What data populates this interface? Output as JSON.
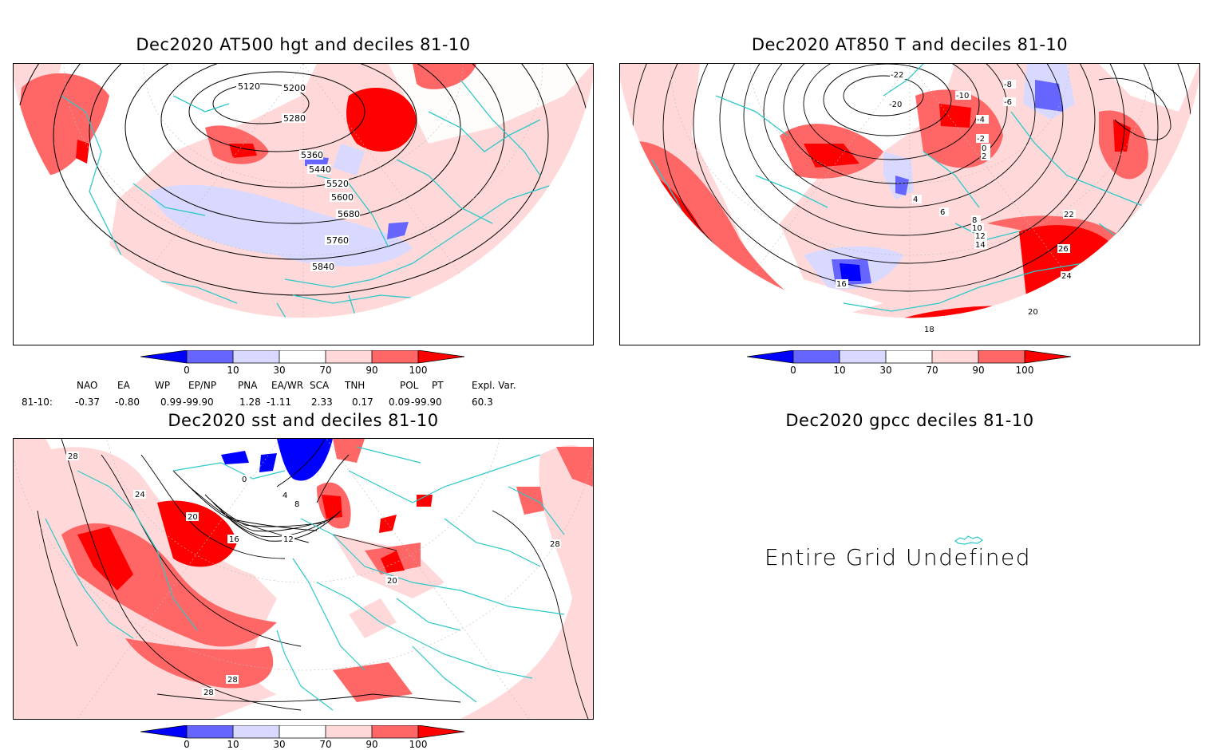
{
  "panels": {
    "hgt": {
      "title": "Dec2020 AT500 hgt and deciles 81-10",
      "contour_labels": [
        "5120",
        "5200",
        "5280",
        "5360",
        "5440",
        "5520",
        "5600",
        "5680",
        "5760",
        "5840"
      ]
    },
    "t850": {
      "title": "Dec2020 AT850 T and deciles 81-10",
      "contour_labels": [
        "-22",
        "-20",
        "-10",
        "-8",
        "-6",
        "-4",
        "-2",
        "0",
        "2",
        "4",
        "6",
        "8",
        "10",
        "12",
        "14",
        "16",
        "18",
        "20",
        "22",
        "24",
        "26"
      ]
    },
    "sst": {
      "title": "Dec2020 sst and deciles 81-10",
      "contour_labels": [
        "0",
        "4",
        "8",
        "12",
        "16",
        "20",
        "24",
        "28"
      ]
    },
    "gpcc": {
      "title": "Dec2020 gpcc deciles 81-10",
      "message": "Entire Grid Undefined"
    }
  },
  "colorbar": {
    "ticks": [
      "0",
      "10",
      "30",
      "70",
      "90",
      "100"
    ],
    "colors": [
      "#0000ff",
      "#6666ff",
      "#d9d9ff",
      "#ffffff",
      "#ffd9d9",
      "#ff6666",
      "#ff0000"
    ]
  },
  "indices": {
    "headers": [
      "NAO",
      "EA",
      "WP",
      "EP/NP",
      "PNA",
      "EA/WR",
      "SCA",
      "TNH",
      "POL",
      "PT",
      "Expl. Var."
    ],
    "row_label": "81-10:",
    "values": [
      "-0.37",
      "-0.80",
      "0.99",
      "-99.90",
      "1.28",
      "-1.11",
      "2.33",
      "0.17",
      "0.09",
      "-99.90",
      "60.3"
    ]
  },
  "map_colors": {
    "coast": "#2ec8c8",
    "contour": "#000000"
  }
}
